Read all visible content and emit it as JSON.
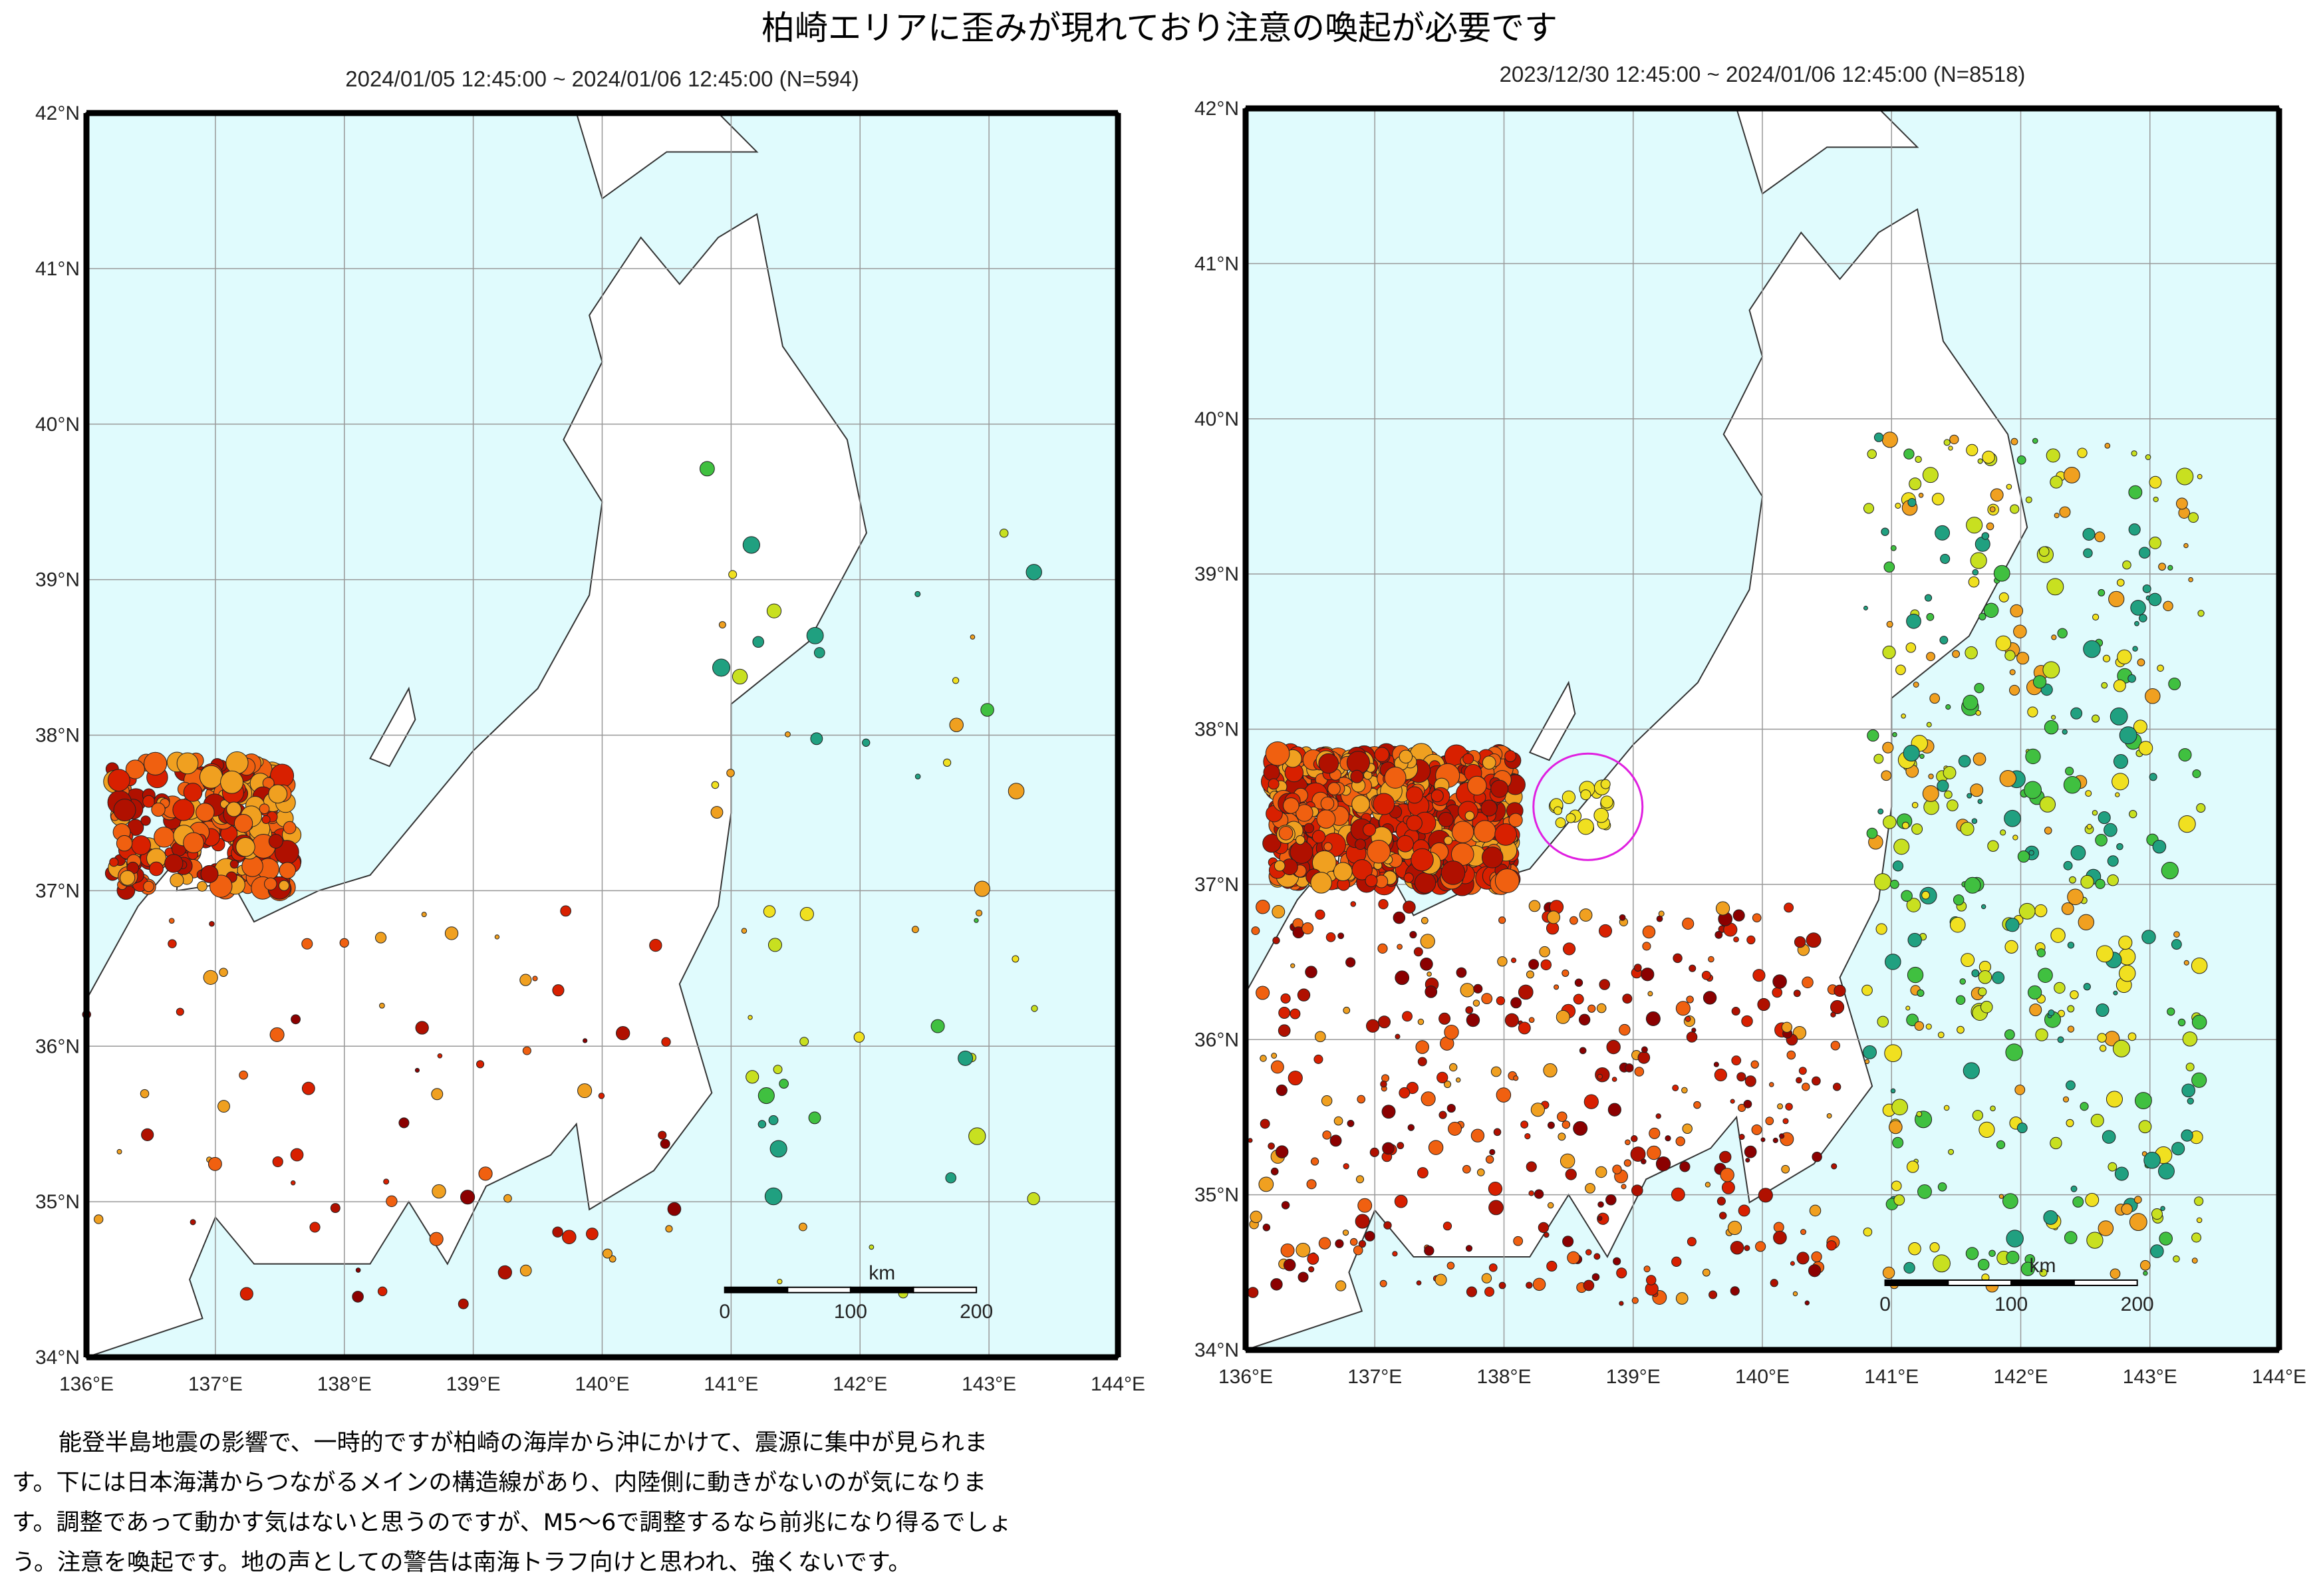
{
  "title": "柏崎エリアに歪みが現れており注意の喚起が必要です",
  "panels": [
    {
      "subtitle": "2024/01/05 12:45:00 ~ 2024/01/06 12:45:00 (N=594)",
      "lat_labels": [
        "34°N",
        "35°N",
        "36°N",
        "37°N",
        "38°N",
        "39°N",
        "40°N",
        "41°N",
        "42°N"
      ],
      "lon_labels": [
        "136°E",
        "137°E",
        "138°E",
        "139°E",
        "140°E",
        "141°E",
        "142°E",
        "143°E",
        "144°E"
      ],
      "scale": {
        "unit": "km",
        "labels": [
          "0",
          "100",
          "200"
        ]
      }
    },
    {
      "subtitle": "2023/12/30 12:45:00 ~ 2024/01/06 12:45:00 (N=8518)",
      "lat_labels": [
        "34°N",
        "35°N",
        "36°N",
        "37°N",
        "38°N",
        "39°N",
        "40°N",
        "41°N",
        "42°N"
      ],
      "lon_labels": [
        "136°E",
        "137°E",
        "138°E",
        "139°E",
        "140°E",
        "141°E",
        "142°E",
        "143°E",
        "144°E"
      ],
      "scale": {
        "unit": "km",
        "labels": [
          "0",
          "100",
          "200"
        ]
      }
    }
  ],
  "paragraph": [
    "能登半島地震の影響で、一時的ですが柏崎の海岸から沖にかけて、震源に集中が見られま",
    "す。下には日本海溝からつながるメインの構造線があり、内陸側に動きがないのが気になりま",
    "す。調整であって動かす気はないと思うのですが、M5〜6で調整するなら前兆になり得るでしょ",
    "う。注意を喚起です。地の声としての警告は南海トラフ向けと思われ、強くないです。"
  ]
}
